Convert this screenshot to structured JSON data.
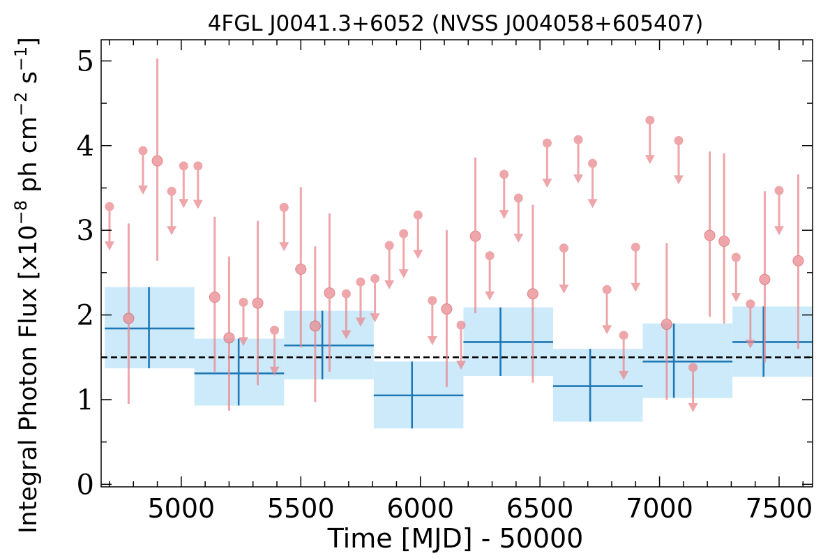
{
  "chart_data": {
    "type": "scatter",
    "title": "4FGL J0041.3+6052 (NVSS J004058+605407)",
    "xlabel": "Time [MJD] - 50000",
    "ylabel": {
      "prefix": "Integral Photon Flux [x10",
      "exp1": "−8",
      "mid": " ph cm",
      "exp2": "−2",
      "mid2": " s",
      "exp3": "−1",
      "suffix": "]"
    },
    "xlim": [
      4665,
      7640
    ],
    "ylim": [
      -0.03,
      5.25
    ],
    "xticks": [
      {
        "value": 5000,
        "label": "5000"
      },
      {
        "value": 5500,
        "label": "5500"
      },
      {
        "value": 6000,
        "label": "6000"
      },
      {
        "value": 6500,
        "label": "6500"
      },
      {
        "value": 7000,
        "label": "7000"
      },
      {
        "value": 7500,
        "label": "7500"
      }
    ],
    "yticks": [
      {
        "value": 0,
        "label": "0"
      },
      {
        "value": 1,
        "label": "1"
      },
      {
        "value": 2,
        "label": "2"
      },
      {
        "value": 3,
        "label": "3"
      },
      {
        "value": 4,
        "label": "4"
      },
      {
        "value": 5,
        "label": "5"
      }
    ],
    "x_minor_step": 100,
    "y_minor_step": 0.5,
    "mean_flux": 1.5,
    "colors": {
      "points": "#e8858a",
      "bins": "#1f77b4",
      "band": "#cdeafb",
      "mean_line": "#000000"
    },
    "series": [
      {
        "kind": "upper_limits",
        "x": [
          4700,
          4840,
          4960,
          5010,
          5070,
          5260,
          5390,
          5430,
          5690,
          5750,
          5810,
          5870,
          5930,
          5990,
          6050,
          6170,
          6290,
          6350,
          6410,
          6530,
          6600,
          6660,
          6720,
          6780,
          6850,
          6900,
          6960,
          7080,
          7140,
          7320,
          7380,
          7500
        ],
        "y": [
          3.28,
          3.94,
          3.46,
          3.76,
          3.76,
          2.15,
          1.82,
          3.27,
          2.25,
          2.39,
          2.43,
          2.82,
          2.96,
          3.18,
          2.17,
          1.88,
          2.7,
          3.66,
          3.38,
          4.03,
          2.79,
          4.07,
          3.79,
          2.3,
          1.76,
          2.8,
          4.3,
          4.06,
          1.38,
          2.68,
          2.13,
          3.47
        ],
        "arrow_to": [
          2.77,
          3.43,
          2.95,
          3.27,
          3.26,
          1.64,
          1.29,
          2.76,
          1.72,
          1.87,
          1.92,
          2.31,
          2.44,
          2.67,
          1.65,
          1.36,
          2.18,
          3.14,
          2.86,
          3.51,
          2.26,
          3.56,
          3.27,
          1.78,
          1.24,
          2.28,
          3.79,
          3.55,
          0.86,
          2.16,
          1.61,
          2.95
        ]
      },
      {
        "kind": "detections",
        "x": [
          4780,
          4900,
          5140,
          5200,
          5320,
          5500,
          5560,
          5620,
          6110,
          6230,
          6470,
          7030,
          7210,
          7270,
          7440,
          7580
        ],
        "y": [
          1.96,
          3.82,
          2.21,
          1.73,
          2.14,
          2.54,
          1.87,
          2.26,
          2.07,
          2.93,
          2.25,
          1.89,
          2.94,
          2.87,
          2.42,
          2.64
        ],
        "err_low": [
          0.95,
          2.64,
          1.33,
          0.87,
          1.17,
          1.62,
          0.97,
          1.33,
          1.15,
          2.02,
          1.2,
          1.0,
          1.98,
          1.9,
          1.44,
          1.6
        ],
        "err_high": [
          3.08,
          5.03,
          3.16,
          2.69,
          3.11,
          3.51,
          2.81,
          3.2,
          3.0,
          3.86,
          3.3,
          2.85,
          3.93,
          3.91,
          3.46,
          3.66
        ]
      },
      {
        "kind": "binned",
        "x_start": [
          4680,
          5055,
          5430,
          5805,
          6180,
          6555,
          6930,
          7305
        ],
        "x_end": [
          5055,
          5430,
          5805,
          6180,
          6555,
          6930,
          7305,
          7680
        ],
        "x_center": [
          4865,
          5240,
          5590,
          5965,
          6335,
          6710,
          7060,
          7435
        ],
        "y": [
          1.84,
          1.31,
          1.64,
          1.05,
          1.68,
          1.16,
          1.45,
          1.68
        ],
        "err_low": [
          1.37,
          0.93,
          1.24,
          0.66,
          1.28,
          0.74,
          1.02,
          1.27
        ],
        "err_high": [
          2.33,
          1.72,
          2.05,
          1.45,
          2.09,
          1.6,
          1.9,
          2.1
        ]
      }
    ]
  }
}
